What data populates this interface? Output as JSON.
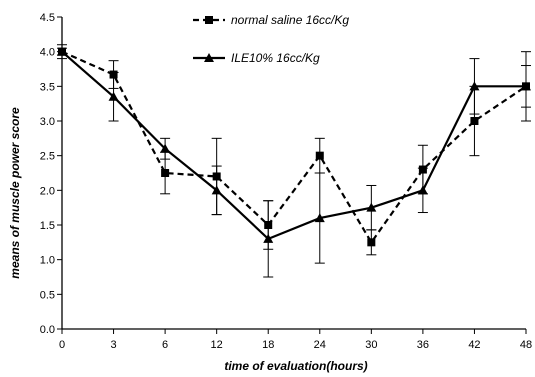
{
  "chart_data": {
    "type": "line",
    "categories": [
      "0",
      "3",
      "6",
      "12",
      "18",
      "24",
      "30",
      "36",
      "42",
      "48"
    ],
    "xlabel": "time of evaluation(hours)",
    "ylabel": "means of muscle power score",
    "ylim": [
      0.0,
      4.5
    ],
    "yticks": [
      "0.0",
      "0.5",
      "1.0",
      "1.5",
      "2.0",
      "2.5",
      "3.0",
      "3.5",
      "4.0",
      "4.5"
    ],
    "grid": false,
    "legend_position": "top",
    "series": [
      {
        "name": "normal saline 16cc/Kg",
        "marker": "square",
        "line_style": "dashed",
        "values": [
          4.0,
          3.67,
          2.25,
          2.2,
          1.5,
          2.5,
          1.25,
          2.3,
          3.0,
          3.5
        ],
        "errors": [
          0.1,
          0.2,
          0.3,
          0.55,
          0.35,
          0.25,
          0.18,
          0.35,
          0.5,
          0.3
        ]
      },
      {
        "name": "ILE10% 16cc/Kg",
        "marker": "triangle",
        "line_style": "solid",
        "values": [
          4.0,
          3.35,
          2.6,
          2.0,
          1.3,
          1.6,
          1.75,
          2.0,
          3.5,
          3.5
        ],
        "errors": [
          0.05,
          0.35,
          0.15,
          0.35,
          0.55,
          0.65,
          0.32,
          0.32,
          0.4,
          0.5
        ]
      }
    ]
  },
  "colors": {
    "ink": "#000000",
    "background": "#ffffff"
  }
}
